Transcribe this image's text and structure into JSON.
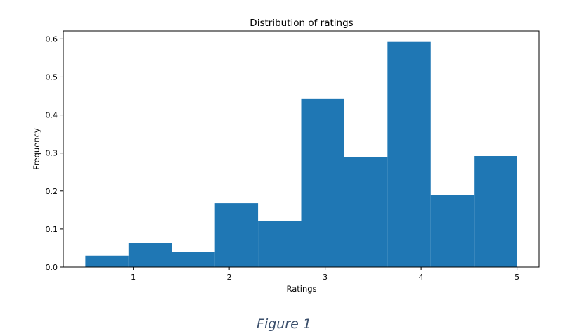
{
  "caption": "Figure 1",
  "colors": {
    "bar_fill": "#1f77b4",
    "axis": "#000000",
    "background": "#ffffff",
    "caption_text": "#3b4f6b"
  },
  "chart_data": {
    "type": "bar",
    "title": "Distribution of ratings",
    "xlabel": "Ratings",
    "ylabel": "Frequency",
    "bin_edges": [
      0.5,
      0.95,
      1.4,
      1.85,
      2.3,
      2.75,
      3.2,
      3.65,
      4.1,
      4.55,
      5.0
    ],
    "values": [
      0.03,
      0.063,
      0.04,
      0.168,
      0.122,
      0.442,
      0.29,
      0.592,
      0.19,
      0.292
    ],
    "xlim": [
      0.27,
      5.23
    ],
    "ylim": [
      0,
      0.621
    ],
    "xticks": [
      1,
      2,
      3,
      4,
      5
    ],
    "xtick_labels": [
      "1",
      "2",
      "3",
      "4",
      "5"
    ],
    "yticks": [
      0.0,
      0.1,
      0.2,
      0.3,
      0.4,
      0.5,
      0.6
    ],
    "ytick_labels": [
      "0.0",
      "0.1",
      "0.2",
      "0.3",
      "0.4",
      "0.5",
      "0.6"
    ],
    "grid": false,
    "legend": "none"
  }
}
